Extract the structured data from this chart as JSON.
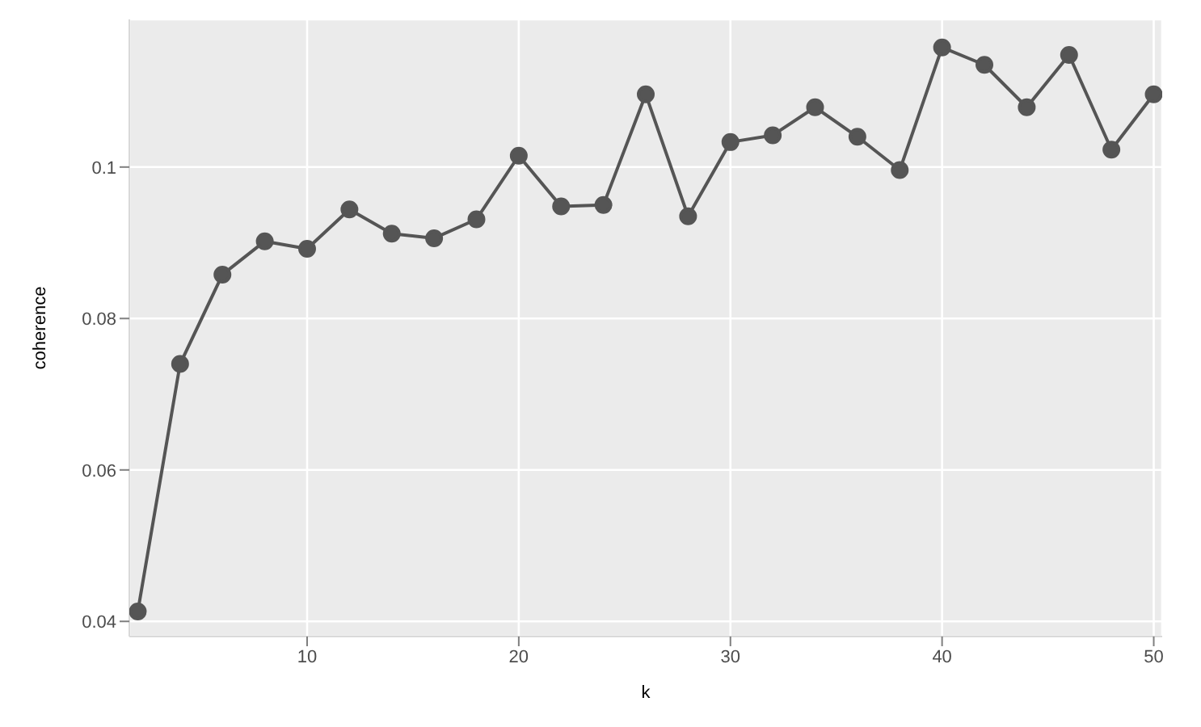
{
  "chart_data": {
    "type": "line",
    "xlabel": "k",
    "ylabel": "coherence",
    "x": [
      2,
      4,
      6,
      8,
      10,
      12,
      14,
      16,
      18,
      20,
      22,
      24,
      26,
      28,
      30,
      32,
      34,
      36,
      38,
      40,
      42,
      44,
      46,
      48,
      50
    ],
    "series": [
      {
        "color": "#555555",
        "values": [
          0.0413,
          0.074,
          0.0858,
          0.0902,
          0.0892,
          0.0944,
          0.0912,
          0.0906,
          0.0931,
          0.1015,
          0.0948,
          0.095,
          0.1096,
          0.0935,
          0.1033,
          0.1042,
          0.1079,
          0.104,
          0.0996,
          0.1158,
          0.1135,
          0.1079,
          0.1148,
          0.1023,
          0.1096
        ]
      }
    ],
    "xlim": [
      1.6,
      50.4
    ],
    "ylim": [
      0.038,
      0.1195
    ],
    "xticks": [
      10,
      20,
      30,
      40,
      50
    ],
    "yticks": [
      {
        "value": 0.04,
        "label": "0.04"
      },
      {
        "value": 0.06,
        "label": "0.06"
      },
      {
        "value": 0.08,
        "label": "0.08"
      },
      {
        "value": 0.1,
        "label": "0.1"
      }
    ],
    "grid": true,
    "marker": "circle",
    "line_style": "solid",
    "legend": false
  }
}
